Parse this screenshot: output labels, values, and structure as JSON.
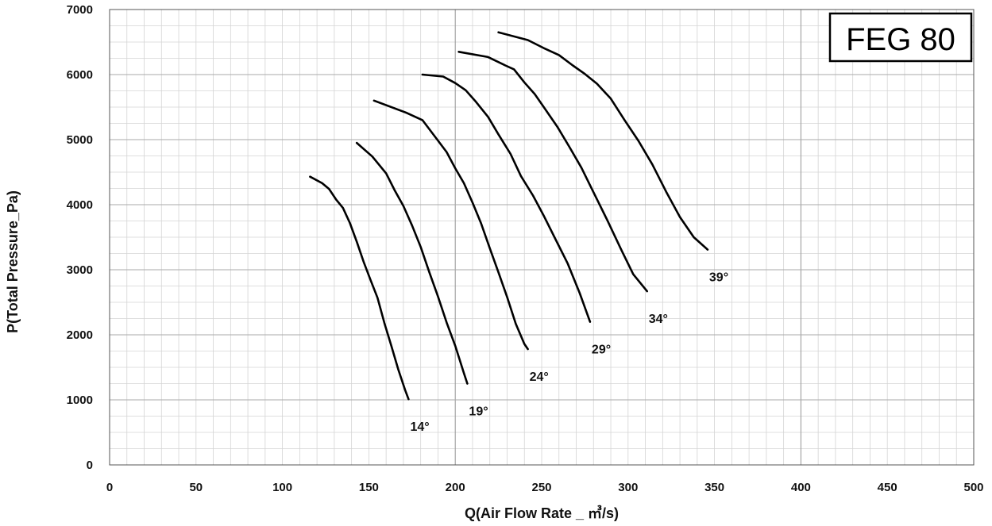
{
  "chart_data": {
    "type": "line",
    "title": "FEG 80",
    "xlabel": "Q(Air Flow Rate _ ㎥/s)",
    "ylabel": "P(Total Pressure_Pa)",
    "xlim": [
      0,
      500
    ],
    "ylim": [
      0,
      7000
    ],
    "x_ticks": [
      0,
      50,
      100,
      150,
      200,
      250,
      300,
      350,
      400,
      450,
      500
    ],
    "y_ticks": [
      0,
      1000,
      2000,
      3000,
      4000,
      5000,
      6000,
      7000
    ],
    "grid": true,
    "series": [
      {
        "name": "14°",
        "x": [
          116,
          123,
          127,
          131,
          135,
          139,
          143,
          147,
          151,
          155,
          159,
          163,
          167,
          171,
          173
        ],
        "y": [
          4430,
          4330,
          4240,
          4080,
          3950,
          3720,
          3430,
          3120,
          2840,
          2570,
          2180,
          1830,
          1470,
          1150,
          1010
        ]
      },
      {
        "name": "19°",
        "x": [
          143,
          152,
          160,
          165,
          170,
          175,
          180,
          185,
          190,
          195,
          200,
          205,
          207
        ],
        "y": [
          4950,
          4740,
          4480,
          4220,
          3980,
          3680,
          3350,
          2960,
          2590,
          2190,
          1830,
          1410,
          1250
        ]
      },
      {
        "name": "24°",
        "x": [
          153,
          172,
          181,
          189,
          195,
          200,
          205,
          210,
          215,
          220,
          225,
          230,
          235,
          240,
          242
        ],
        "y": [
          5600,
          5410,
          5300,
          5020,
          4810,
          4560,
          4330,
          4030,
          3710,
          3330,
          2960,
          2580,
          2170,
          1860,
          1780
        ]
      },
      {
        "name": "29°",
        "x": [
          181,
          193,
          200,
          206,
          212,
          219,
          225,
          232,
          238,
          245,
          251,
          258,
          265,
          272,
          278
        ],
        "y": [
          6000,
          5970,
          5870,
          5760,
          5580,
          5350,
          5080,
          4780,
          4440,
          4140,
          3840,
          3470,
          3100,
          2640,
          2200
        ]
      },
      {
        "name": "34°",
        "x": [
          202,
          219,
          229,
          234,
          240,
          246,
          252,
          259,
          266,
          273,
          280,
          288,
          296,
          303,
          311
        ],
        "y": [
          6350,
          6270,
          6140,
          6080,
          5880,
          5700,
          5470,
          5200,
          4890,
          4570,
          4190,
          3760,
          3310,
          2930,
          2670
        ]
      },
      {
        "name": "39°",
        "x": [
          225,
          242,
          251,
          260,
          268,
          275,
          282,
          290,
          298,
          306,
          314,
          322,
          330,
          338,
          346
        ],
        "y": [
          6650,
          6530,
          6410,
          6300,
          6140,
          6010,
          5860,
          5630,
          5300,
          4980,
          4620,
          4200,
          3810,
          3500,
          3310
        ]
      }
    ]
  }
}
